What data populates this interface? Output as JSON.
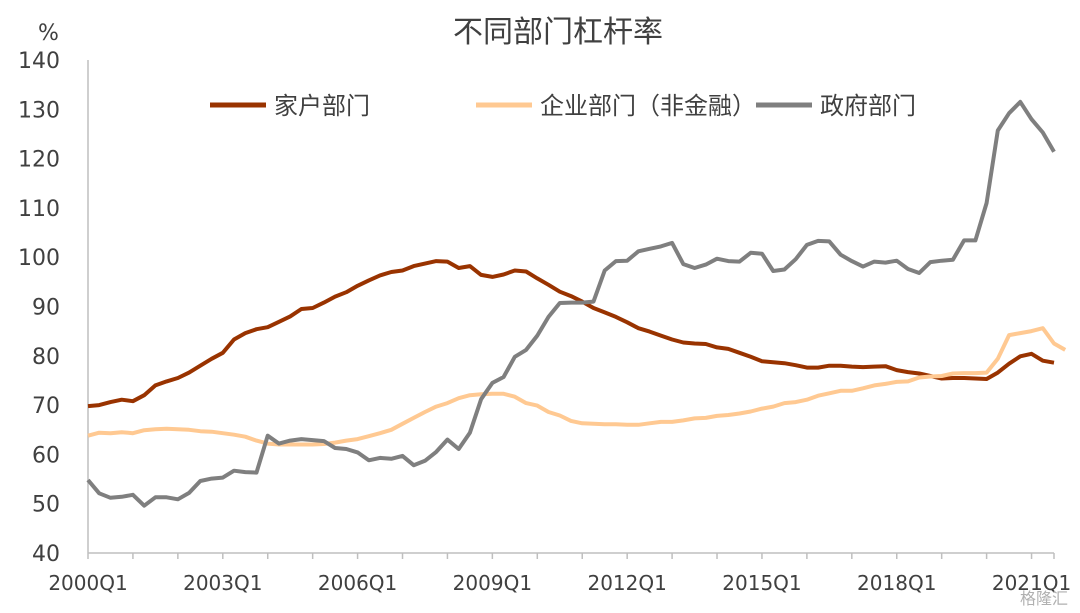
{
  "chart_data": {
    "type": "line",
    "title": "不同部门杠杆率",
    "unit_label": "%",
    "ylim": [
      40,
      140
    ],
    "yticks": [
      40,
      50,
      60,
      70,
      80,
      90,
      100,
      110,
      120,
      130,
      140
    ],
    "xtick_labels": [
      "2000Q1",
      "2003Q1",
      "2006Q1",
      "2009Q1",
      "2012Q1",
      "2015Q1",
      "2018Q1",
      "2021Q1"
    ],
    "x_start": "2000Q1",
    "x_end": "2021Q4",
    "grid": false,
    "legend_position": "top",
    "watermark": "格隆汇",
    "series": [
      {
        "name": "家户部门",
        "color": "#993300",
        "values": [
          69.8,
          70.0,
          70.6,
          71.1,
          70.8,
          72.0,
          74.0,
          74.8,
          75.5,
          76.6,
          78.0,
          79.4,
          80.6,
          83.3,
          84.6,
          85.4,
          85.8,
          86.9,
          88.0,
          89.5,
          89.7,
          90.8,
          92.0,
          92.9,
          94.2,
          95.3,
          96.3,
          97.0,
          97.3,
          98.2,
          98.7,
          99.2,
          99.1,
          97.8,
          98.2,
          96.4,
          96.0,
          96.5,
          97.3,
          97.1,
          95.7,
          94.4,
          93.0,
          92.1,
          91.0,
          89.7,
          88.8,
          87.9,
          86.8,
          85.6,
          84.9,
          84.1,
          83.3,
          82.7,
          82.5,
          82.4,
          81.7,
          81.4,
          80.6,
          79.8,
          78.9,
          78.7,
          78.5,
          78.1,
          77.6,
          77.6,
          78.0,
          78.0,
          77.8,
          77.7,
          77.8,
          77.9,
          77.1,
          76.7,
          76.4,
          75.9,
          75.4,
          75.5,
          75.5,
          75.4,
          75.3,
          76.6,
          78.4,
          79.9,
          80.4,
          79.0,
          78.6
        ]
      },
      {
        "name": "企业部门（非金融）",
        "color": "#ffc992",
        "values": [
          63.8,
          64.4,
          64.3,
          64.5,
          64.3,
          64.9,
          65.1,
          65.2,
          65.1,
          65.0,
          64.7,
          64.6,
          64.3,
          64.0,
          63.6,
          62.8,
          62.2,
          62.0,
          62.0,
          62.0,
          62.0,
          62.1,
          62.4,
          62.8,
          63.1,
          63.7,
          64.3,
          65.0,
          66.2,
          67.4,
          68.6,
          69.7,
          70.4,
          71.4,
          72.0,
          72.2,
          72.3,
          72.3,
          71.7,
          70.4,
          69.9,
          68.6,
          67.9,
          66.8,
          66.3,
          66.2,
          66.1,
          66.1,
          66.0,
          66.0,
          66.3,
          66.6,
          66.6,
          66.9,
          67.3,
          67.4,
          67.8,
          68.0,
          68.3,
          68.7,
          69.3,
          69.7,
          70.4,
          70.6,
          71.1,
          71.9,
          72.4,
          72.9,
          72.9,
          73.4,
          74.0,
          74.3,
          74.7,
          74.8,
          75.6,
          75.8,
          75.9,
          76.4,
          76.5,
          76.5,
          76.6,
          79.4,
          84.2,
          84.6,
          85.0,
          85.6,
          82.5,
          81.2
        ]
      },
      {
        "name": "政府部门",
        "color": "#7f7f7f",
        "values": [
          54.8,
          52.1,
          51.2,
          51.4,
          51.8,
          49.6,
          51.3,
          51.3,
          50.9,
          52.2,
          54.6,
          55.1,
          55.3,
          56.7,
          56.4,
          56.3,
          63.8,
          62.2,
          62.8,
          63.1,
          62.9,
          62.7,
          61.3,
          61.1,
          60.4,
          58.8,
          59.3,
          59.1,
          59.7,
          57.8,
          58.7,
          60.5,
          63.0,
          61.1,
          64.4,
          71.2,
          74.5,
          75.7,
          79.8,
          81.2,
          84.1,
          87.9,
          90.7,
          90.8,
          90.8,
          91.0,
          97.3,
          99.2,
          99.3,
          101.2,
          101.7,
          102.2,
          102.9,
          98.6,
          97.8,
          98.5,
          99.7,
          99.2,
          99.1,
          100.9,
          100.7,
          97.2,
          97.5,
          99.6,
          102.5,
          103.3,
          103.2,
          100.5,
          99.2,
          98.1,
          99.1,
          98.9,
          99.3,
          97.6,
          96.8,
          99.0,
          99.3,
          99.5,
          103.4,
          103.4,
          111.0,
          125.7,
          129.2,
          131.5,
          128.0,
          125.3,
          121.4
        ]
      }
    ]
  }
}
